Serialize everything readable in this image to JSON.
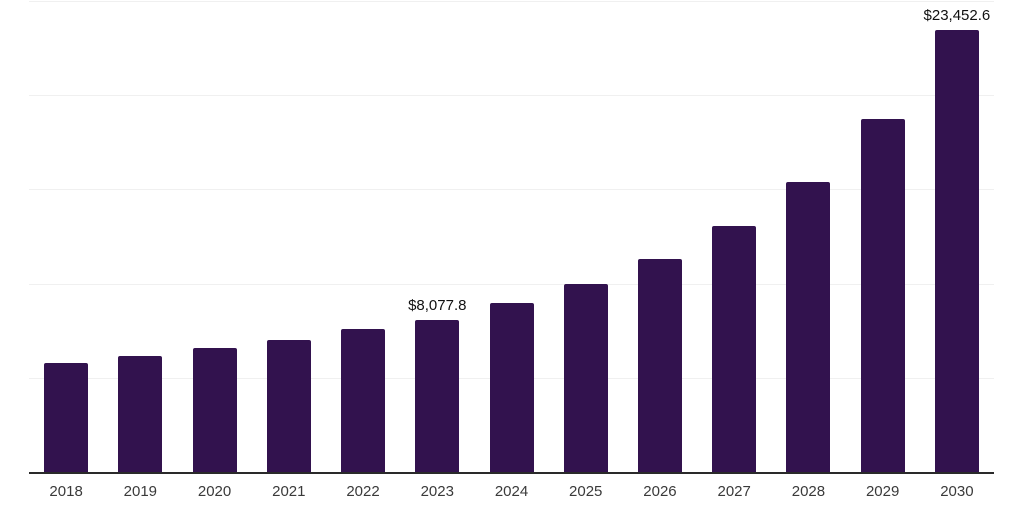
{
  "chart_data": {
    "type": "bar",
    "title": "",
    "xlabel": "",
    "ylabel": "",
    "categories": [
      "2018",
      "2019",
      "2020",
      "2021",
      "2022",
      "2023",
      "2024",
      "2025",
      "2026",
      "2027",
      "2028",
      "2029",
      "2030"
    ],
    "values": [
      5770,
      6170,
      6570,
      7000,
      7570,
      8077.8,
      8950,
      10000,
      11330,
      13040,
      15420,
      18740,
      23452.6
    ],
    "data_labels": [
      "",
      "",
      "",
      "",
      "",
      "$8,077.8",
      "",
      "",
      "",
      "",
      "",
      "",
      "$23,452.6"
    ],
    "ylim": [
      0,
      25000
    ],
    "gridline_step": 5000,
    "grid": "horizontal-only",
    "legend": "none",
    "y_axis_labels_visible": false,
    "colors": {
      "bar": "#32124E",
      "gridline": "#F0F0F0",
      "axis_line": "#2A2A2A",
      "tick_label": "#3A3A3A",
      "data_label": "#111111",
      "background": "#FFFFFF"
    }
  }
}
